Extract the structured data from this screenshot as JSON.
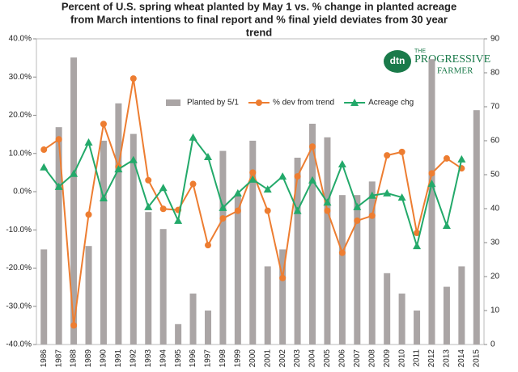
{
  "chart_data": {
    "type": "bar_line",
    "title": [
      "Percent of U.S. spring wheat planted by May 1 vs. % change in planted acreage",
      "from March intentions to final report and % final yield deviates from 30 year",
      "trend"
    ],
    "logo": {
      "mark": "dtn",
      "line1": "THE",
      "line2": "PROGRESSIVE",
      "line3": "FARMER"
    },
    "categories": [
      "1986",
      "1987",
      "1988",
      "1989",
      "1990",
      "1991",
      "1992",
      "1993",
      "1994",
      "1995",
      "1996",
      "1997",
      "1998",
      "1999",
      "2000",
      "2001",
      "2002",
      "2003",
      "2004",
      "2005",
      "2006",
      "2007",
      "2008",
      "2009",
      "2010",
      "2011",
      "2012",
      "2013",
      "2014",
      "2015"
    ],
    "series": [
      {
        "name": "Planted by 5/1",
        "kind": "bar",
        "axis": "y2",
        "color": "#aaa5a5",
        "values": [
          28,
          64,
          84.5,
          29,
          60,
          71,
          62,
          39,
          34,
          6,
          15,
          10,
          57,
          44,
          60,
          23,
          28,
          55,
          65,
          61,
          44,
          44,
          48,
          21,
          15,
          10,
          84,
          17,
          23,
          69
        ]
      },
      {
        "name": "% dev from trend",
        "kind": "line",
        "marker": "circle",
        "color": "#ed7d31",
        "values": [
          11,
          13.7,
          -35,
          -6,
          17.7,
          6.5,
          29.6,
          3,
          -4.5,
          -4.8,
          2,
          -14,
          -7,
          -5,
          5,
          -5,
          -22.6,
          4,
          11.8,
          -5,
          -16,
          -7.6,
          -6.3,
          9.5,
          10.4,
          -10.8,
          4.8,
          8.7,
          6.1,
          null
        ]
      },
      {
        "name": "Acreage chg",
        "kind": "line",
        "marker": "triangle",
        "color": "#23a96a",
        "values": [
          6.4,
          1.3,
          4.7,
          12.9,
          -1.7,
          5.9,
          8.3,
          -4,
          1,
          -7.6,
          14.2,
          9.1,
          -4.2,
          -0.4,
          3.2,
          0.6,
          4,
          -5,
          3,
          -2.8,
          7.2,
          -4,
          -1,
          -0.4,
          -1.5,
          -14.2,
          2.1,
          -8.9,
          8.5,
          null
        ]
      }
    ],
    "ylim": [
      -40,
      40
    ],
    "yticks": [
      {
        "value": -40,
        "label": "-40.0%"
      },
      {
        "value": -30,
        "label": "-30.0%"
      },
      {
        "value": -20,
        "label": "-20.0%"
      },
      {
        "value": -10,
        "label": "-10.0%"
      },
      {
        "value": 0,
        "label": "0.0%"
      },
      {
        "value": 10,
        "label": "10.0%"
      },
      {
        "value": 20,
        "label": "20.0%"
      },
      {
        "value": 30,
        "label": "30.0%"
      },
      {
        "value": 40,
        "label": "40.0%"
      }
    ],
    "y2lim": [
      0,
      90
    ],
    "y2ticks": [
      0,
      10,
      20,
      30,
      40,
      50,
      60,
      70,
      80,
      90
    ]
  }
}
